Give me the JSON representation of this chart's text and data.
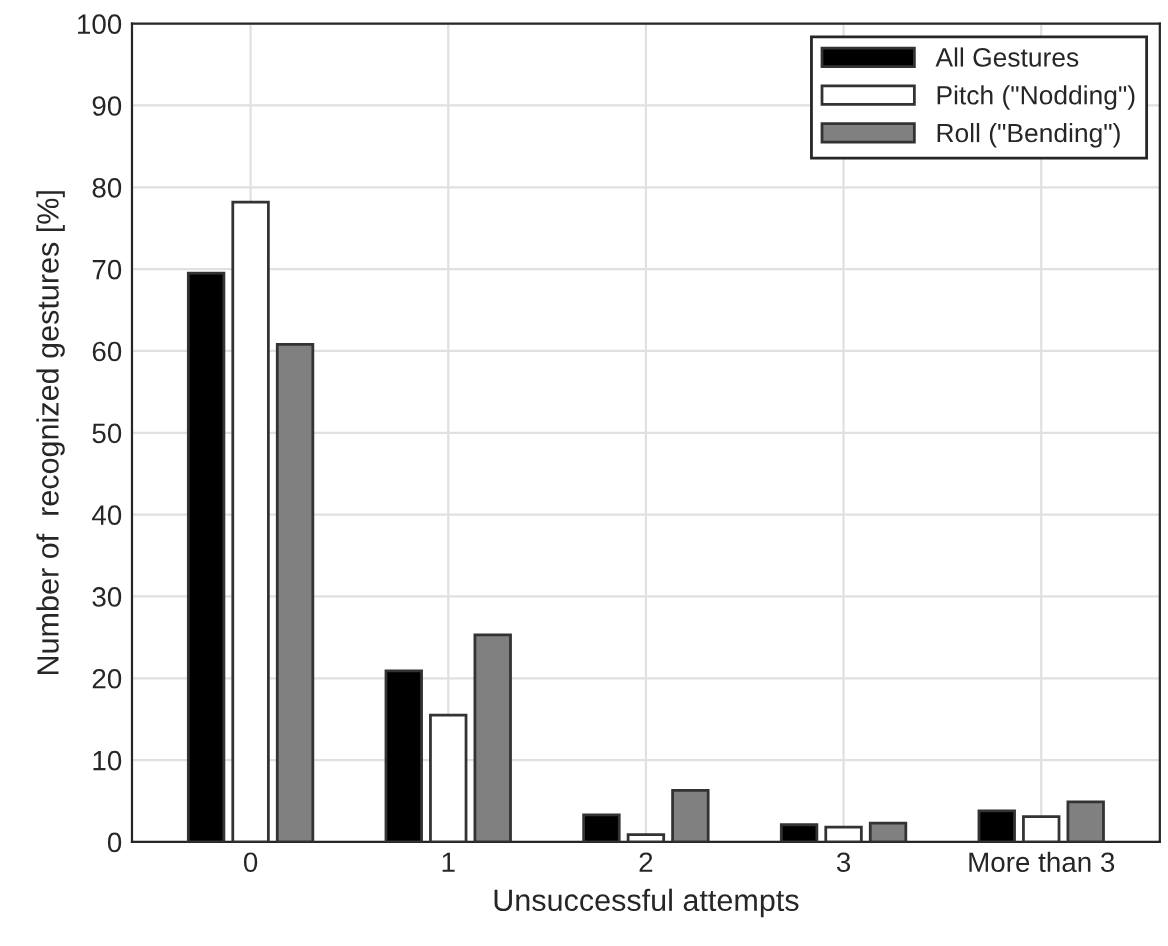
{
  "chart_data": {
    "type": "bar",
    "xlabel": "Unsuccessful attempts",
    "ylabel": "Number of  recognized gestures [%]",
    "categories": [
      "0",
      "1",
      "2",
      "3",
      "More than 3"
    ],
    "series": [
      {
        "name": "All Gestures",
        "color": "#000000",
        "values": [
          69.5,
          20.9,
          3.3,
          2.1,
          3.8
        ]
      },
      {
        "name": "Pitch (\"Nodding\")",
        "color": "#ffffff",
        "values": [
          78.2,
          15.5,
          0.9,
          1.8,
          3.1
        ]
      },
      {
        "name": "Roll (\"Bending\")",
        "color": "#808080",
        "values": [
          60.8,
          25.3,
          6.3,
          2.3,
          4.9
        ]
      }
    ],
    "ylim": [
      0,
      100
    ],
    "yticks": [
      0,
      10,
      20,
      30,
      40,
      50,
      60,
      70,
      80,
      90,
      100
    ],
    "grid": true,
    "legend": "top right"
  }
}
